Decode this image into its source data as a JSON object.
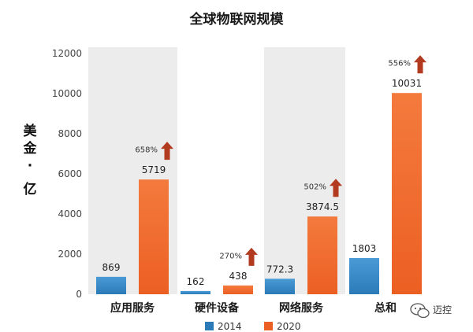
{
  "chart_data": {
    "type": "bar",
    "title": "全球物联网规模",
    "ylabel": [
      "美",
      "金",
      "·",
      "亿"
    ],
    "categories": [
      "应用服务",
      "硬件设备",
      "网络服务",
      "总和"
    ],
    "series": [
      {
        "name": "2014",
        "values": [
          869,
          162,
          772.3,
          1803
        ],
        "labels": [
          "869",
          "162",
          "772.3",
          "1803"
        ]
      },
      {
        "name": "2020",
        "values": [
          5719,
          438,
          3874.5,
          10031
        ],
        "labels": [
          "5719",
          "438",
          "3874.5",
          "10031"
        ]
      }
    ],
    "growth": [
      "658%",
      "270%",
      "502%",
      "556%"
    ],
    "ylim": [
      0,
      12000
    ],
    "yticks": [
      "0",
      "2000",
      "4000",
      "6000",
      "8000",
      "10000",
      "12000"
    ],
    "grid": false,
    "legend_position": "bottom-center",
    "colors": {
      "2014": "#2a7bb8",
      "2020": "#ec5f23",
      "arrow": "#b23a1f",
      "band": "#ececec"
    }
  },
  "watermark": {
    "name": "迈控",
    "icon": "wechat-icon"
  }
}
